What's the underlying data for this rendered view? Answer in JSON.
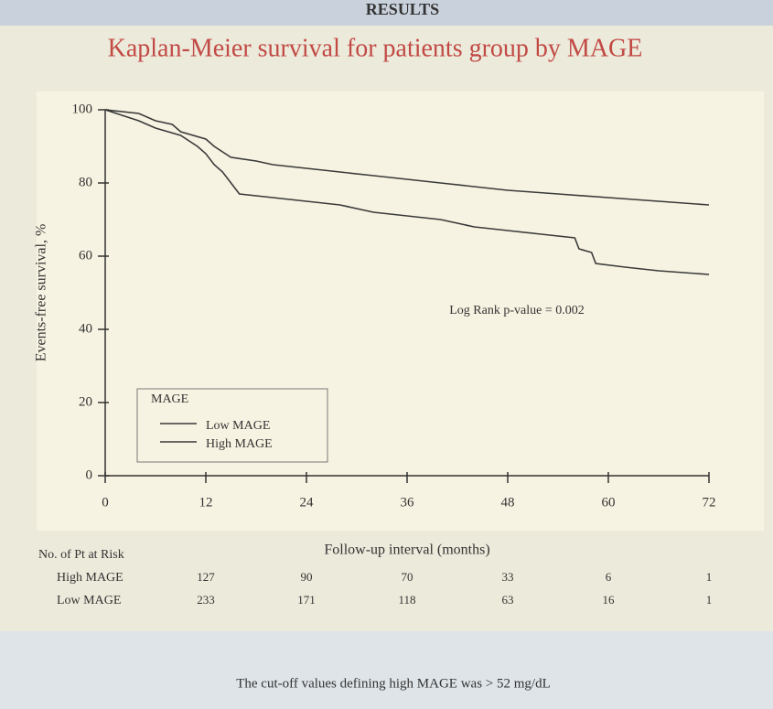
{
  "header": "RESULTS",
  "chart_data": {
    "type": "line",
    "title": "Kaplan-Meier survival for patients group by MAGE",
    "y_label": "Events-free survival, %",
    "x_label": "Follow-up interval (months)",
    "annotation": "Log Rank p-value = 0.002",
    "legend_title": "MAGE",
    "xlim": [
      0,
      72
    ],
    "xticks": [
      0,
      12,
      24,
      36,
      48,
      60,
      72
    ],
    "ylim": [
      0,
      100
    ],
    "yticks": [
      0,
      20,
      40,
      60,
      80,
      100
    ],
    "series": [
      {
        "name": "Low MAGE",
        "color": "#3a3a3a",
        "x": [
          0,
          4,
          6,
          8,
          9,
          12,
          13,
          15,
          18,
          20,
          24,
          28,
          32,
          36,
          40,
          44,
          48,
          54,
          60,
          66,
          72
        ],
        "values": [
          100,
          99,
          97,
          96,
          94,
          92,
          90,
          87,
          86,
          85,
          84,
          83,
          82,
          81,
          80,
          79,
          78,
          77,
          76,
          75,
          74
        ]
      },
      {
        "name": "High MAGE",
        "color": "#3a3a3a",
        "x": [
          0,
          4,
          6,
          9,
          11,
          12,
          13,
          14,
          15,
          16,
          20,
          24,
          28,
          32,
          36,
          40,
          44,
          48,
          52,
          56,
          56.5,
          58,
          58.5,
          62,
          66,
          72
        ],
        "values": [
          100,
          97,
          95,
          93,
          90,
          88,
          85,
          83,
          80,
          77,
          76,
          75,
          74,
          72,
          71,
          70,
          68,
          67,
          66,
          65,
          62,
          61,
          58,
          57,
          56,
          55
        ]
      }
    ],
    "risk_table": {
      "title": "No. of Pt at Risk",
      "rows": [
        {
          "name": "High MAGE",
          "values": [
            127,
            90,
            70,
            33,
            6,
            1
          ]
        },
        {
          "name": "Low MAGE",
          "values": [
            233,
            171,
            118,
            63,
            16,
            1
          ]
        }
      ]
    },
    "footnote": "The cut-off values defining high MAGE was > 52 mg/dL"
  }
}
